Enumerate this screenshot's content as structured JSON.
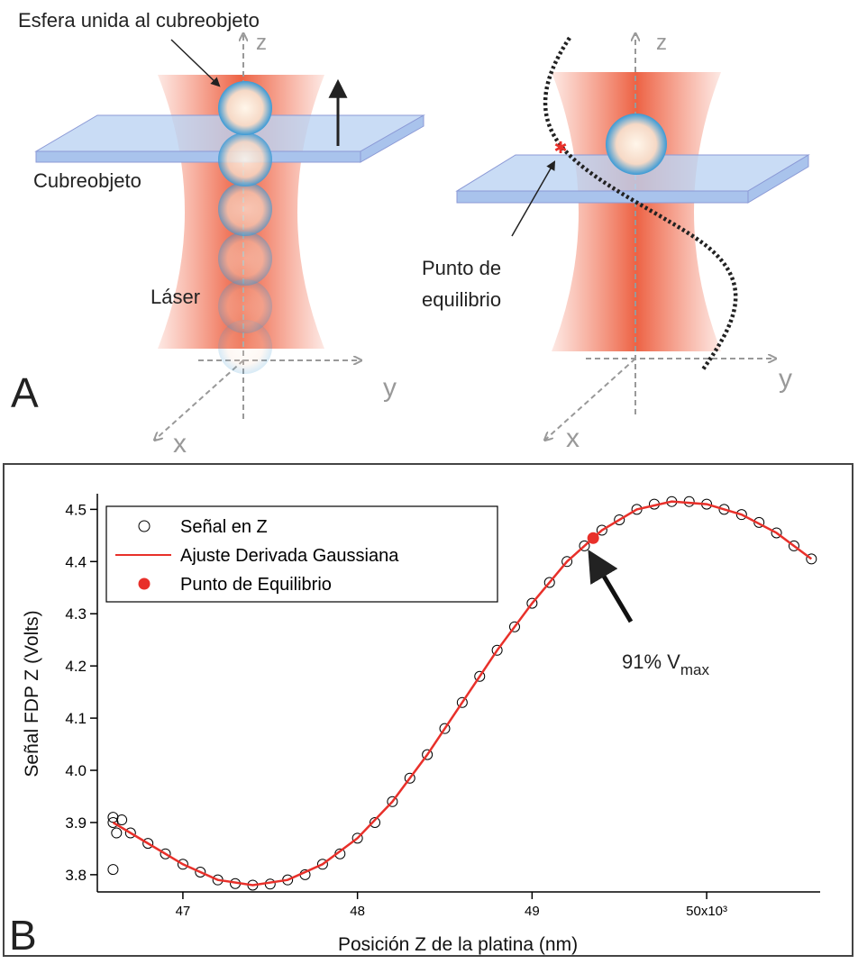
{
  "panel_a": {
    "label": "A",
    "sphere_label": "Esfera unida al cubreobjeto",
    "coverslip_label": "Cubreobjeto",
    "laser_label": "Láser",
    "equilibrium_label": [
      "Punto de",
      "equilibrio"
    ],
    "axes_left": {
      "z": "z",
      "y": "y",
      "x": "x"
    },
    "axes_right": {
      "z": "z",
      "y": "y",
      "x": "x"
    }
  },
  "chart_data": {
    "type": "scatter",
    "panel_label": "B",
    "x_label": "Posición Z de la platina (nm)",
    "y_label": "Señal FDP Z (Volts)",
    "xlim": [
      46.51,
      50.65
    ],
    "ylim": [
      3.767,
      4.53
    ],
    "xticks": [
      47,
      48,
      49,
      {
        "value": 50,
        "label": "50x10³"
      }
    ],
    "yticks": [
      3.8,
      3.9,
      {
        "value": 4,
        "label": "4.0"
      },
      4.1,
      4.2,
      4.3,
      4.4,
      4.5
    ],
    "legend": "top-left",
    "annotation": {
      "text": "91% V",
      "sub": "max"
    },
    "series": [
      {
        "name": "Señal en Z",
        "color": "#000000",
        "style": "open-circle",
        "x": [
          46.6,
          46.7,
          46.8,
          46.9,
          47.0,
          47.1,
          47.2,
          47.3,
          47.4,
          47.5,
          47.6,
          47.7,
          47.8,
          47.9,
          48.0,
          48.1,
          48.2,
          48.3,
          48.4,
          48.5,
          48.6,
          48.7,
          48.8,
          48.9,
          49.0,
          49.1,
          49.2,
          49.3,
          49.4,
          49.5,
          49.6,
          49.7,
          49.8,
          49.9,
          50.0,
          50.1,
          50.2,
          50.3,
          50.4,
          50.5,
          50.6,
          46.6,
          46.62,
          46.6,
          46.65
        ],
        "values": [
          3.9,
          3.88,
          3.86,
          3.84,
          3.82,
          3.805,
          3.79,
          3.783,
          3.78,
          3.782,
          3.79,
          3.8,
          3.82,
          3.84,
          3.87,
          3.9,
          3.94,
          3.985,
          4.03,
          4.08,
          4.13,
          4.18,
          4.23,
          4.275,
          4.32,
          4.36,
          4.4,
          4.43,
          4.46,
          4.48,
          4.5,
          4.51,
          4.515,
          4.515,
          4.51,
          4.5,
          4.49,
          4.475,
          4.455,
          4.43,
          4.405,
          3.91,
          3.88,
          3.81,
          3.905
        ]
      },
      {
        "name": "Ajuste Derivada Gaussiana",
        "color": "#e8302a",
        "style": "line",
        "x": [
          46.6,
          46.8,
          47.0,
          47.2,
          47.4,
          47.6,
          47.8,
          48.0,
          48.2,
          48.4,
          48.6,
          48.8,
          49.0,
          49.2,
          49.4,
          49.6,
          49.8,
          50.0,
          50.2,
          50.4,
          50.6
        ],
        "values": [
          3.9,
          3.86,
          3.82,
          3.79,
          3.78,
          3.79,
          3.82,
          3.87,
          3.94,
          4.03,
          4.13,
          4.23,
          4.32,
          4.4,
          4.46,
          4.5,
          4.515,
          4.51,
          4.49,
          4.455,
          4.405
        ]
      },
      {
        "name": "Punto de Equilibrio",
        "color": "#e8302a",
        "style": "dot",
        "x": [
          49.35
        ],
        "values": [
          4.445
        ]
      }
    ]
  }
}
